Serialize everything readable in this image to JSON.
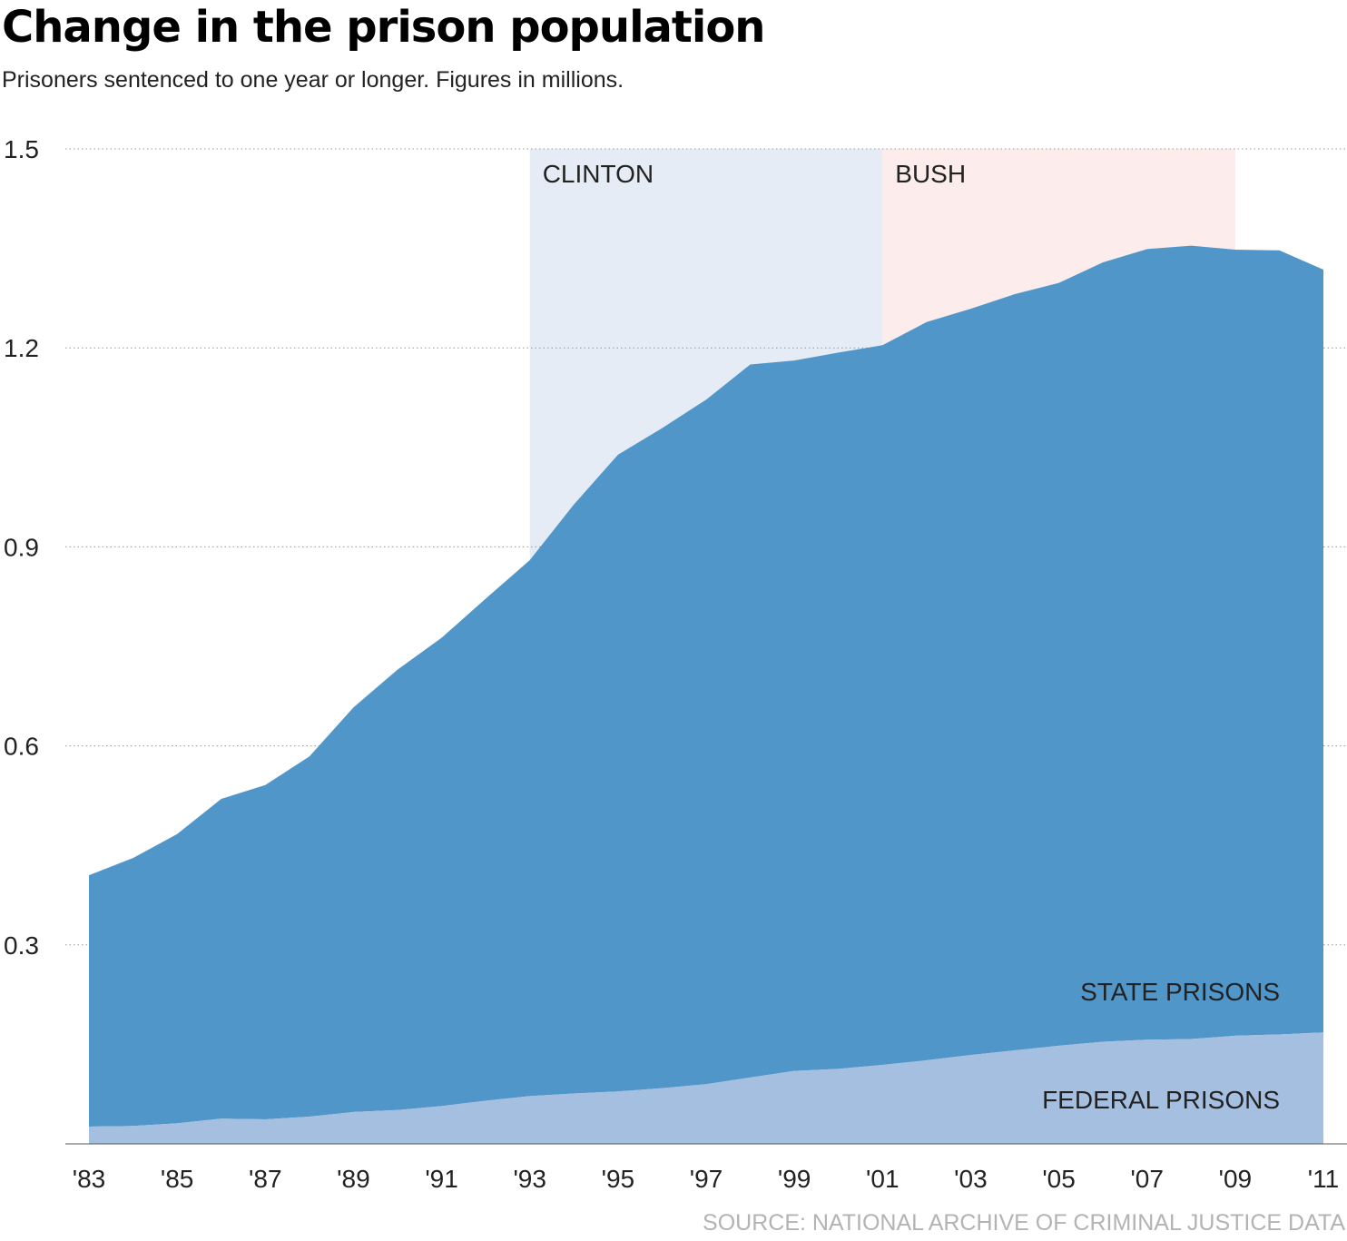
{
  "header": {
    "title": "Change in the prison population",
    "subtitle": "Prisoners sentenced to one year or longer. Figures in millions."
  },
  "footer": {
    "source": "SOURCE: NATIONAL ARCHIVE OF CRIMINAL JUSTICE DATA"
  },
  "colors": {
    "state": "#5096c9",
    "federal": "#a4bfe0",
    "clinton_band": "#e6ecf5",
    "bush_band": "#fcecec",
    "gridline": "#999999"
  },
  "chart_data": {
    "type": "area",
    "stacked": true,
    "title": "Change in the prison population",
    "subtitle": "Prisoners sentenced to one year or longer. Figures in millions.",
    "xlabel": "",
    "ylabel": "",
    "ylim": [
      0,
      1.5
    ],
    "xlim": [
      1983,
      2011
    ],
    "yticks": [
      0.3,
      0.6,
      0.9,
      1.2,
      1.5
    ],
    "ytick_labels": [
      "0.3",
      "0.6",
      "0.9",
      "1.2",
      "1.5"
    ],
    "xticks": [
      1983,
      1985,
      1987,
      1989,
      1991,
      1993,
      1995,
      1997,
      1999,
      2001,
      2003,
      2005,
      2007,
      2009,
      2011
    ],
    "xtick_labels": [
      "'83",
      "'85",
      "'87",
      "'89",
      "'91",
      "'93",
      "'95",
      "'97",
      "'99",
      "'01",
      "'03",
      "'05",
      "'07",
      "'09",
      "'11"
    ],
    "grid": true,
    "x": [
      1983,
      1984,
      1985,
      1986,
      1987,
      1988,
      1989,
      1990,
      1991,
      1992,
      1993,
      1994,
      1995,
      1996,
      1997,
      1998,
      1999,
      2000,
      2001,
      2002,
      2003,
      2004,
      2005,
      2006,
      2007,
      2008,
      2009,
      2010,
      2011
    ],
    "series": [
      {
        "name": "FEDERAL PRISONS",
        "values": [
          0.026,
          0.027,
          0.031,
          0.038,
          0.037,
          0.041,
          0.048,
          0.051,
          0.057,
          0.065,
          0.072,
          0.076,
          0.079,
          0.084,
          0.09,
          0.1,
          0.11,
          0.113,
          0.119,
          0.126,
          0.134,
          0.141,
          0.148,
          0.154,
          0.157,
          0.158,
          0.163,
          0.165,
          0.168
        ]
      },
      {
        "name": "STATE PRISONS",
        "values": [
          0.379,
          0.404,
          0.436,
          0.482,
          0.504,
          0.543,
          0.61,
          0.664,
          0.706,
          0.757,
          0.808,
          0.888,
          0.96,
          0.995,
          1.032,
          1.075,
          1.071,
          1.08,
          1.085,
          1.113,
          1.125,
          1.14,
          1.15,
          1.175,
          1.192,
          1.196,
          1.185,
          1.182,
          1.15
        ]
      }
    ],
    "annotations": [
      {
        "label": "CLINTON",
        "x_start": 1993,
        "x_end": 2001
      },
      {
        "label": "BUSH",
        "x_start": 2001,
        "x_end": 2009
      }
    ],
    "legend": "inline-bottom-right"
  }
}
